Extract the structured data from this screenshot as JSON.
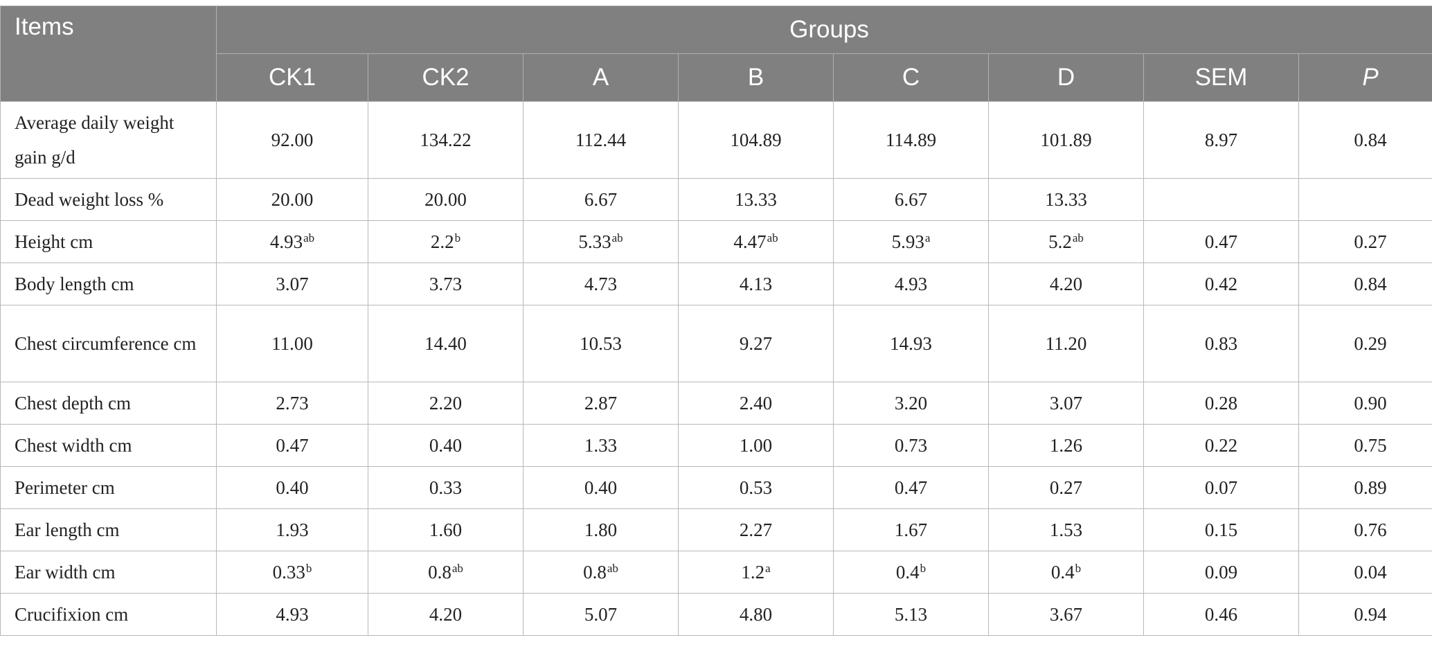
{
  "header": {
    "items_label": "Items",
    "groups_label": "Groups",
    "columns": [
      "CK1",
      "CK2",
      "A",
      "B",
      "C",
      "D",
      "SEM",
      "P"
    ]
  },
  "rows": [
    {
      "item": "Average daily weight gain g/d",
      "cells": [
        {
          "v": "92.00",
          "s": ""
        },
        {
          "v": "134.22",
          "s": ""
        },
        {
          "v": "112.44",
          "s": ""
        },
        {
          "v": "104.89",
          "s": ""
        },
        {
          "v": "114.89",
          "s": ""
        },
        {
          "v": "101.89",
          "s": ""
        },
        {
          "v": "8.97",
          "s": ""
        },
        {
          "v": "0.84",
          "s": ""
        }
      ]
    },
    {
      "item": "Dead weight loss %",
      "cells": [
        {
          "v": "20.00",
          "s": ""
        },
        {
          "v": "20.00",
          "s": ""
        },
        {
          "v": "6.67",
          "s": ""
        },
        {
          "v": "13.33",
          "s": ""
        },
        {
          "v": "6.67",
          "s": ""
        },
        {
          "v": "13.33",
          "s": ""
        },
        {
          "v": "",
          "s": ""
        },
        {
          "v": "",
          "s": ""
        }
      ]
    },
    {
      "item": "Height cm",
      "cells": [
        {
          "v": "4.93",
          "s": "ab"
        },
        {
          "v": "2.2",
          "s": "b"
        },
        {
          "v": "5.33",
          "s": "ab"
        },
        {
          "v": "4.47",
          "s": "ab"
        },
        {
          "v": "5.93",
          "s": "a"
        },
        {
          "v": "5.2",
          "s": "ab"
        },
        {
          "v": "0.47",
          "s": ""
        },
        {
          "v": "0.27",
          "s": ""
        }
      ]
    },
    {
      "item": "Body length cm",
      "cells": [
        {
          "v": "3.07",
          "s": ""
        },
        {
          "v": "3.73",
          "s": ""
        },
        {
          "v": "4.73",
          "s": ""
        },
        {
          "v": "4.13",
          "s": ""
        },
        {
          "v": "4.93",
          "s": ""
        },
        {
          "v": "4.20",
          "s": ""
        },
        {
          "v": "0.42",
          "s": ""
        },
        {
          "v": "0.84",
          "s": ""
        }
      ]
    },
    {
      "item": "Chest circumference cm",
      "cells": [
        {
          "v": "11.00",
          "s": ""
        },
        {
          "v": "14.40",
          "s": ""
        },
        {
          "v": "10.53",
          "s": ""
        },
        {
          "v": "9.27",
          "s": ""
        },
        {
          "v": "14.93",
          "s": ""
        },
        {
          "v": "11.20",
          "s": ""
        },
        {
          "v": "0.83",
          "s": ""
        },
        {
          "v": "0.29",
          "s": ""
        }
      ]
    },
    {
      "item": "Chest depth cm",
      "cells": [
        {
          "v": "2.73",
          "s": ""
        },
        {
          "v": "2.20",
          "s": ""
        },
        {
          "v": "2.87",
          "s": ""
        },
        {
          "v": "2.40",
          "s": ""
        },
        {
          "v": "3.20",
          "s": ""
        },
        {
          "v": "3.07",
          "s": ""
        },
        {
          "v": "0.28",
          "s": ""
        },
        {
          "v": "0.90",
          "s": ""
        }
      ]
    },
    {
      "item": "Chest width cm",
      "cells": [
        {
          "v": "0.47",
          "s": ""
        },
        {
          "v": "0.40",
          "s": ""
        },
        {
          "v": "1.33",
          "s": ""
        },
        {
          "v": "1.00",
          "s": ""
        },
        {
          "v": "0.73",
          "s": ""
        },
        {
          "v": "1.26",
          "s": ""
        },
        {
          "v": "0.22",
          "s": ""
        },
        {
          "v": "0.75",
          "s": ""
        }
      ]
    },
    {
      "item": "Perimeter cm",
      "cells": [
        {
          "v": "0.40",
          "s": ""
        },
        {
          "v": "0.33",
          "s": ""
        },
        {
          "v": "0.40",
          "s": ""
        },
        {
          "v": "0.53",
          "s": ""
        },
        {
          "v": "0.47",
          "s": ""
        },
        {
          "v": "0.27",
          "s": ""
        },
        {
          "v": "0.07",
          "s": ""
        },
        {
          "v": "0.89",
          "s": ""
        }
      ]
    },
    {
      "item": "Ear length cm",
      "cells": [
        {
          "v": "1.93",
          "s": ""
        },
        {
          "v": "1.60",
          "s": ""
        },
        {
          "v": "1.80",
          "s": ""
        },
        {
          "v": "2.27",
          "s": ""
        },
        {
          "v": "1.67",
          "s": ""
        },
        {
          "v": "1.53",
          "s": ""
        },
        {
          "v": "0.15",
          "s": ""
        },
        {
          "v": "0.76",
          "s": ""
        }
      ]
    },
    {
      "item": "Ear width cm",
      "cells": [
        {
          "v": "0.33",
          "s": "b"
        },
        {
          "v": "0.8",
          "s": "ab"
        },
        {
          "v": "0.8",
          "s": "ab"
        },
        {
          "v": "1.2",
          "s": "a"
        },
        {
          "v": "0.4",
          "s": "b"
        },
        {
          "v": "0.4",
          "s": "b"
        },
        {
          "v": "0.09",
          "s": ""
        },
        {
          "v": "0.04",
          "s": ""
        }
      ]
    },
    {
      "item": "Crucifixion cm",
      "cells": [
        {
          "v": "4.93",
          "s": ""
        },
        {
          "v": "4.20",
          "s": ""
        },
        {
          "v": "5.07",
          "s": ""
        },
        {
          "v": "4.80",
          "s": ""
        },
        {
          "v": "5.13",
          "s": ""
        },
        {
          "v": "3.67",
          "s": ""
        },
        {
          "v": "0.46",
          "s": ""
        },
        {
          "v": "0.94",
          "s": ""
        }
      ]
    }
  ]
}
